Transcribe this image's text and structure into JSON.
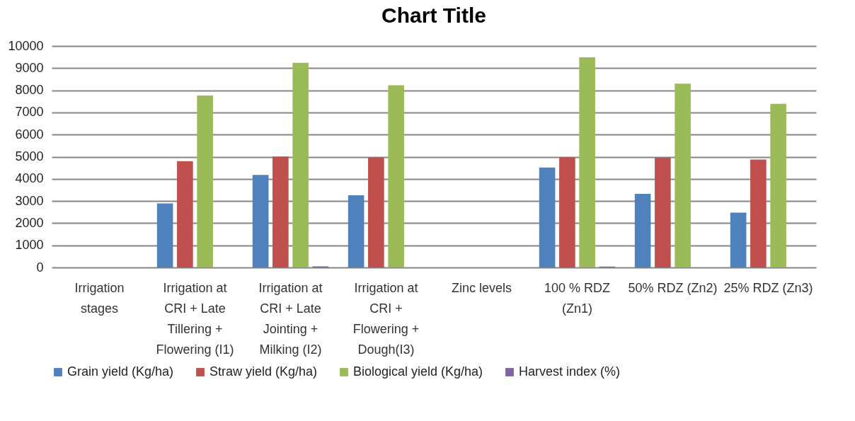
{
  "chart_data": {
    "type": "bar",
    "title": "Chart Title",
    "categories": [
      "Irrigation stages",
      "Irrigation at CRI + Late Tillering + Flowering (I1)",
      "Irrigation at CRI + Late Jointing + Milking (I2)",
      "Irrigation at CRI + Flowering + Dough(I3)",
      "Zinc levels",
      "100 % RDZ (Zn1)",
      "50% RDZ (Zn2)",
      "25% RDZ (Zn3)"
    ],
    "series": [
      {
        "name": "Grain yield (Kg/ha)",
        "color": "#4f81bd",
        "values": [
          null,
          2890,
          4180,
          3260,
          null,
          4510,
          3320,
          2480
        ]
      },
      {
        "name": "Straw yield (Kg/ha)",
        "color": "#c0504d",
        "values": [
          null,
          4800,
          5010,
          4970,
          null,
          4980,
          4960,
          4870
        ]
      },
      {
        "name": "Biological yield (Kg/ha)",
        "color": "#9bbb59",
        "values": [
          null,
          7760,
          9240,
          8230,
          null,
          9490,
          8300,
          7390
        ]
      },
      {
        "name": "Harvest index (%)",
        "color": "#8064a2",
        "values": [
          null,
          null,
          50,
          null,
          null,
          40,
          null,
          null
        ]
      }
    ],
    "ylim": [
      0,
      10000
    ],
    "yticks": [
      0,
      1000,
      2000,
      3000,
      4000,
      5000,
      6000,
      7000,
      8000,
      9000,
      10000
    ],
    "grid": "y",
    "legend": "bottom"
  }
}
